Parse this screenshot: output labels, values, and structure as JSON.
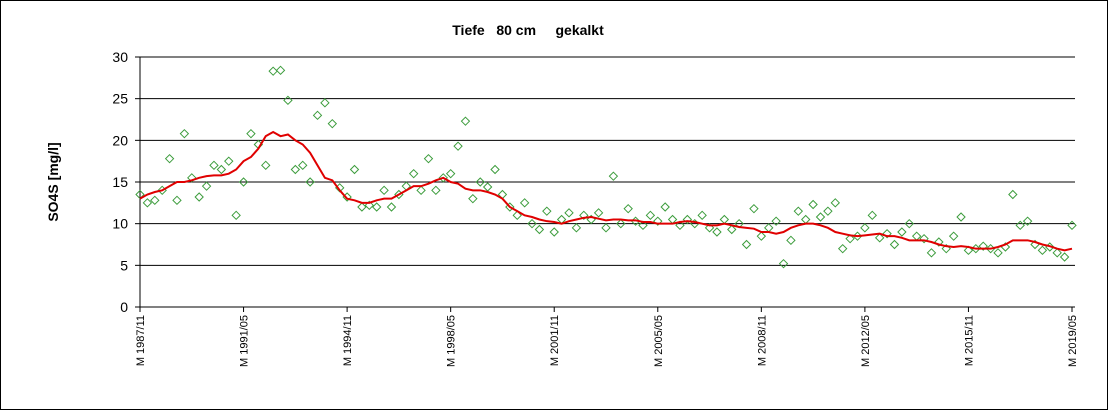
{
  "chart_data": {
    "type": "line",
    "title": "Tiefe   80 cm     gekalkt",
    "y_label": "SO4S [mg/l]",
    "categories": [
      "M 1987/11",
      null,
      null,
      null,
      null,
      null,
      null,
      null,
      null,
      null,
      null,
      null,
      null,
      null,
      "M 1991/05",
      null,
      null,
      null,
      null,
      null,
      null,
      null,
      null,
      null,
      null,
      null,
      null,
      null,
      "M 1994/11",
      null,
      null,
      null,
      null,
      null,
      null,
      null,
      null,
      null,
      null,
      null,
      null,
      null,
      "M 1998/05",
      null,
      null,
      null,
      null,
      null,
      null,
      null,
      null,
      null,
      null,
      null,
      null,
      null,
      "M 2001/11",
      null,
      null,
      null,
      null,
      null,
      null,
      null,
      null,
      null,
      null,
      null,
      null,
      null,
      "M 2005/05",
      null,
      null,
      null,
      null,
      null,
      null,
      null,
      null,
      null,
      null,
      null,
      null,
      null,
      "M 2008/11",
      null,
      null,
      null,
      null,
      null,
      null,
      null,
      null,
      null,
      null,
      null,
      null,
      null,
      "M 2012/05",
      null,
      null,
      null,
      null,
      null,
      null,
      null,
      null,
      null,
      null,
      null,
      null,
      null,
      "M 2015/11",
      null,
      null,
      null,
      null,
      null,
      null,
      null,
      null,
      null,
      null,
      null,
      null,
      null,
      "M 2019/05"
    ],
    "series": [
      {
        "style": "markers",
        "color": "#3c9c3c",
        "values": [
          13.5,
          12.5,
          12.8,
          14,
          17.8,
          12.8,
          20.8,
          15.5,
          13.2,
          14.5,
          17,
          16.5,
          17.5,
          11,
          15,
          20.8,
          19.5,
          17,
          28.3,
          28.4,
          24.8,
          16.5,
          17,
          15,
          23,
          24.5,
          22,
          14.3,
          13.2,
          16.5,
          12,
          12.2,
          12,
          14,
          12,
          13.5,
          14.5,
          16,
          14,
          17.8,
          14,
          15.5,
          16,
          19.3,
          22.3,
          13,
          15,
          14.4,
          16.5,
          13.5,
          12,
          11,
          12.5,
          10,
          9.3,
          11.5,
          9,
          10.5,
          11.3,
          9.5,
          11,
          10.5,
          11.3,
          9.5,
          15.7,
          10,
          11.8,
          10.3,
          9.8,
          11,
          10.3,
          12,
          10.5,
          9.8,
          10.5,
          10,
          11,
          9.5,
          9,
          10.5,
          9.3,
          10,
          7.5,
          11.8,
          8.5,
          9.5,
          10.3,
          5.2,
          8,
          11.5,
          10.5,
          12.3,
          10.8,
          11.5,
          12.5,
          7,
          8.2,
          8.5,
          9.5,
          11,
          8.3,
          8.8,
          7.5,
          9,
          10,
          8.5,
          8.2,
          6.5,
          7.8,
          7,
          8.5,
          10.8,
          6.8,
          7,
          7.3,
          7,
          6.5,
          7.2,
          13.5,
          9.8,
          10.3,
          7.5,
          6.8,
          7.2,
          6.5,
          6,
          9.8
        ]
      },
      {
        "style": "line",
        "color": "#e00000",
        "values": [
          13,
          13.5,
          13.8,
          14,
          14.5,
          15,
          15,
          15.2,
          15.5,
          15.7,
          15.8,
          15.8,
          16,
          16.5,
          17.5,
          18,
          19,
          20.5,
          21,
          20.5,
          20.7,
          20,
          19.5,
          18.5,
          17,
          15.5,
          15.2,
          14,
          13,
          12.8,
          12.5,
          12.5,
          12.8,
          13,
          13,
          13.5,
          14,
          14.5,
          14.5,
          14.8,
          15.2,
          15.5,
          15,
          14.8,
          14.2,
          14,
          14,
          13.8,
          13.5,
          13,
          12,
          11.5,
          11,
          10.8,
          10.5,
          10.3,
          10.2,
          10,
          10.3,
          10.5,
          10.7,
          10.8,
          10.6,
          10.4,
          10.5,
          10.5,
          10.4,
          10.4,
          10.2,
          10.2,
          10,
          10,
          10,
          10.2,
          10.3,
          10.2,
          10,
          9.8,
          9.8,
          10,
          9.8,
          9.6,
          9.5,
          9.4,
          9,
          9,
          8.8,
          9,
          9.5,
          9.8,
          10,
          10,
          9.8,
          9.5,
          9,
          8.8,
          8.6,
          8.5,
          8.6,
          8.7,
          8.8,
          8.5,
          8.5,
          8.3,
          8,
          8,
          8,
          7.8,
          7.5,
          7.3,
          7.2,
          7.3,
          7.2,
          7,
          7,
          7,
          7.2,
          7.5,
          8,
          8,
          8,
          7.8,
          7.5,
          7.3,
          7,
          6.8,
          7
        ]
      }
    ],
    "ylim": [
      0,
      30
    ],
    "yticks": [
      0,
      5,
      10,
      15,
      20,
      25,
      30
    ],
    "grid": true
  }
}
